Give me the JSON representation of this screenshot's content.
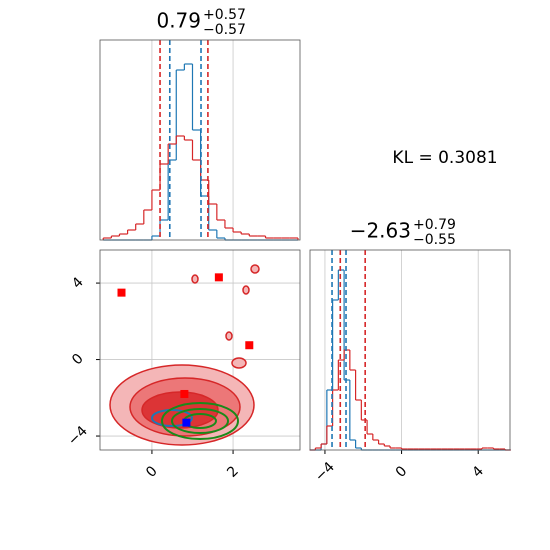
{
  "annotation": "KL = 0.3081",
  "chart_data": [
    {
      "type": "histogram",
      "title": {
        "value": "0.79",
        "upper": "+0.57",
        "lower": "−0.57"
      },
      "xlim": [
        -1.28,
        3.65
      ],
      "ylim": [
        0,
        1
      ],
      "xticks": [
        0,
        2
      ],
      "grid": true,
      "bins": [
        -1.2,
        -1.0,
        -0.8,
        -0.6,
        -0.4,
        -0.2,
        0.0,
        0.2,
        0.4,
        0.6,
        0.8,
        1.0,
        1.2,
        1.4,
        1.6,
        1.8,
        2.0,
        2.2,
        2.4,
        2.6,
        2.8,
        3.0,
        3.2,
        3.4,
        3.6
      ],
      "series": [
        {
          "color": "#1f77b4",
          "values": [
            0,
            0,
            0,
            0,
            0,
            0,
            0.02,
            0.1,
            0.4,
            0.85,
            0.88,
            0.55,
            0.22,
            0.05,
            0.01,
            0,
            0,
            0,
            0,
            0,
            0,
            0,
            0,
            0
          ]
        },
        {
          "color": "#d62728",
          "values": [
            0.01,
            0.02,
            0.03,
            0.05,
            0.08,
            0.15,
            0.25,
            0.38,
            0.48,
            0.52,
            0.5,
            0.4,
            0.3,
            0.18,
            0.1,
            0.06,
            0.04,
            0.03,
            0.02,
            0.02,
            0.01,
            0.01,
            0.01,
            0.01
          ]
        }
      ],
      "vlines": [
        {
          "color": "#d62728",
          "values": [
            0.2,
            1.38
          ]
        },
        {
          "color": "#1f77b4",
          "values": [
            0.44,
            1.21
          ]
        }
      ]
    },
    {
      "type": "scatter",
      "xlim": [
        -1.28,
        3.65
      ],
      "ylim": [
        -4.73,
        5.73
      ],
      "xticks": [
        0,
        2
      ],
      "yticks": [
        {
          "value": -4,
          "label": "−4"
        },
        0,
        4
      ],
      "grid": true,
      "series": [
        {
          "color": "#ff0000",
          "x": [
            -0.75,
            1.65,
            2.4,
            0.8
          ],
          "values": [
            3.5,
            4.3,
            0.75,
            -1.8
          ]
        },
        {
          "color": "#0000ff",
          "x": [
            0.85
          ],
          "values": [
            -3.3
          ]
        }
      ]
    },
    {
      "type": "histogram",
      "title": {
        "value": "−2.63",
        "upper": "+0.79",
        "lower": "−0.55"
      },
      "xlim": [
        -4.78,
        5.66
      ],
      "ylim": [
        0,
        1
      ],
      "xticks": [
        {
          "value": -4,
          "label": "−4"
        },
        0,
        4
      ],
      "grid": true,
      "bins": [
        -4.8,
        -4.5,
        -4.2,
        -3.9,
        -3.6,
        -3.3,
        -3.0,
        -2.7,
        -2.4,
        -2.1,
        -1.8,
        -1.5,
        -1.2,
        -0.9,
        -0.6,
        -0.3,
        0.0,
        0.3,
        0.6,
        0.9,
        1.2,
        1.5,
        1.8,
        2.1,
        2.4,
        2.7,
        3.0,
        3.3,
        3.6,
        3.9,
        4.2,
        4.5,
        4.8,
        5.1,
        5.4,
        5.7
      ],
      "series": [
        {
          "color": "#1f77b4",
          "values": [
            0,
            0,
            0.03,
            0.3,
            0.75,
            0.9,
            0.35,
            0.05,
            0.01,
            0,
            0,
            0,
            0,
            0,
            0,
            0,
            0,
            0,
            0,
            0,
            0,
            0,
            0,
            0,
            0,
            0,
            0,
            0,
            0,
            0,
            0,
            0,
            0,
            0,
            0
          ]
        },
        {
          "color": "#d62728",
          "values": [
            0,
            0.01,
            0.03,
            0.12,
            0.3,
            0.45,
            0.5,
            0.4,
            0.25,
            0.15,
            0.08,
            0.05,
            0.03,
            0.02,
            0.01,
            0.01,
            0.005,
            0.005,
            0.005,
            0.005,
            0.005,
            0.005,
            0.005,
            0.005,
            0.005,
            0.005,
            0.005,
            0.005,
            0.005,
            0.005,
            0.01,
            0.01,
            0.005,
            0.005,
            0
          ]
        }
      ],
      "vlines": [
        {
          "color": "#1f77b4",
          "values": [
            -3.63,
            -2.9
          ]
        },
        {
          "color": "#d62728",
          "values": [
            -3.2,
            -1.9
          ]
        }
      ]
    }
  ]
}
